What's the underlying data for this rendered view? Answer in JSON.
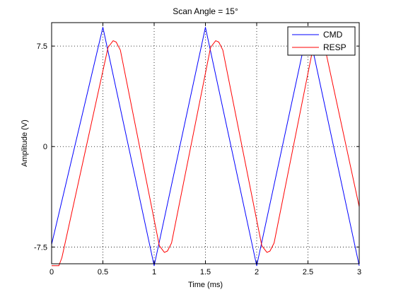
{
  "chart_data": {
    "type": "line",
    "title": "Scan Angle = 15°",
    "xlabel": "Time (ms)",
    "ylabel": "Amplitude (V)",
    "xlim": [
      0,
      3
    ],
    "ylim": [
      -8.75,
      9.25
    ],
    "xticks": [
      0,
      0.5,
      1,
      1.5,
      2,
      2.5,
      3
    ],
    "xtick_labels": [
      "0",
      "0.5",
      "1",
      "1.5",
      "2",
      "2.5",
      "3"
    ],
    "yticks": [
      -7.5,
      0,
      7.5
    ],
    "ytick_labels": [
      "-7.5",
      "0",
      "7.5"
    ],
    "grid": true,
    "legend": "top-right",
    "series": [
      {
        "name": "CMD",
        "color": "#0000ff",
        "x": [
          0,
          0.5,
          1.0,
          1.5,
          2.0,
          2.5,
          3.0
        ],
        "y": [
          -7.3,
          8.9,
          -8.9,
          8.9,
          -8.9,
          8.9,
          -8.9
        ]
      },
      {
        "name": "RESP",
        "color": "#ff0000",
        "x": [
          0,
          0.07,
          0.1,
          0.55,
          0.6,
          0.63,
          0.67,
          1.05,
          1.1,
          1.13,
          1.17,
          1.55,
          1.6,
          1.63,
          1.67,
          2.05,
          2.1,
          2.13,
          2.17,
          2.55,
          2.6,
          2.63,
          2.67,
          3.0
        ],
        "y": [
          -8.9,
          -8.9,
          -8.3,
          7.4,
          7.9,
          7.8,
          7.2,
          -7.4,
          -7.9,
          -7.8,
          -7.2,
          7.4,
          7.9,
          7.8,
          7.2,
          -7.4,
          -7.9,
          -7.8,
          -7.2,
          7.4,
          7.9,
          7.8,
          7.2,
          -4.5
        ]
      }
    ]
  }
}
